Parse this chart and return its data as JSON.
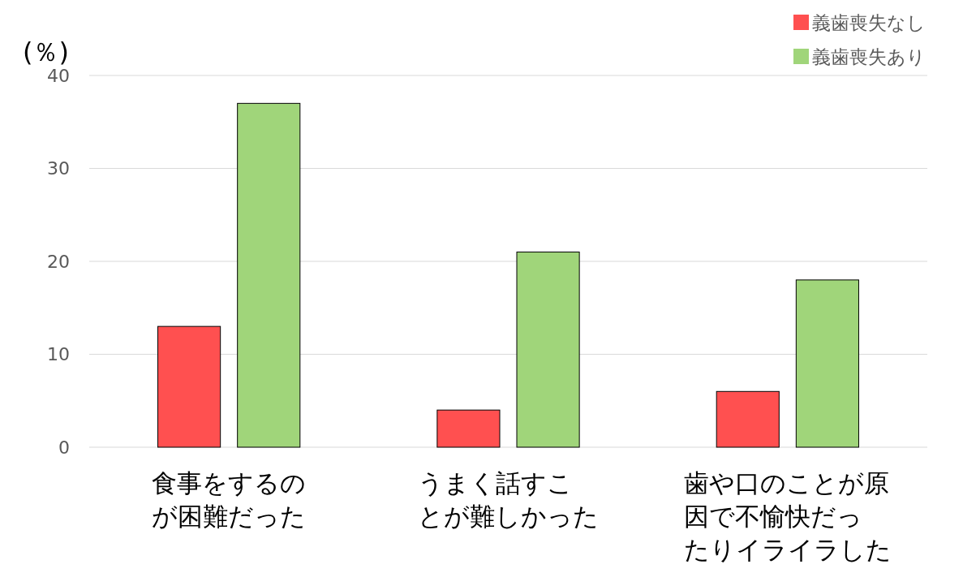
{
  "chart_data": {
    "type": "bar",
    "ylabel": "(％)",
    "categories": [
      "食事をするのが困難だった",
      "うまく話すことが難しかった",
      "歯や口のことが原因で不愉快だったりイライラした"
    ],
    "series": [
      {
        "name": "義歯喪失なし",
        "color": "#ff5050",
        "values": [
          13,
          4,
          6
        ]
      },
      {
        "name": "義歯喪失あり",
        "color": "#a0d57a",
        "values": [
          37,
          21,
          18
        ]
      }
    ],
    "ylim": [
      0,
      40
    ],
    "yticks": [
      0,
      10,
      20,
      30,
      40
    ],
    "grid": "y",
    "legend": "top right"
  }
}
